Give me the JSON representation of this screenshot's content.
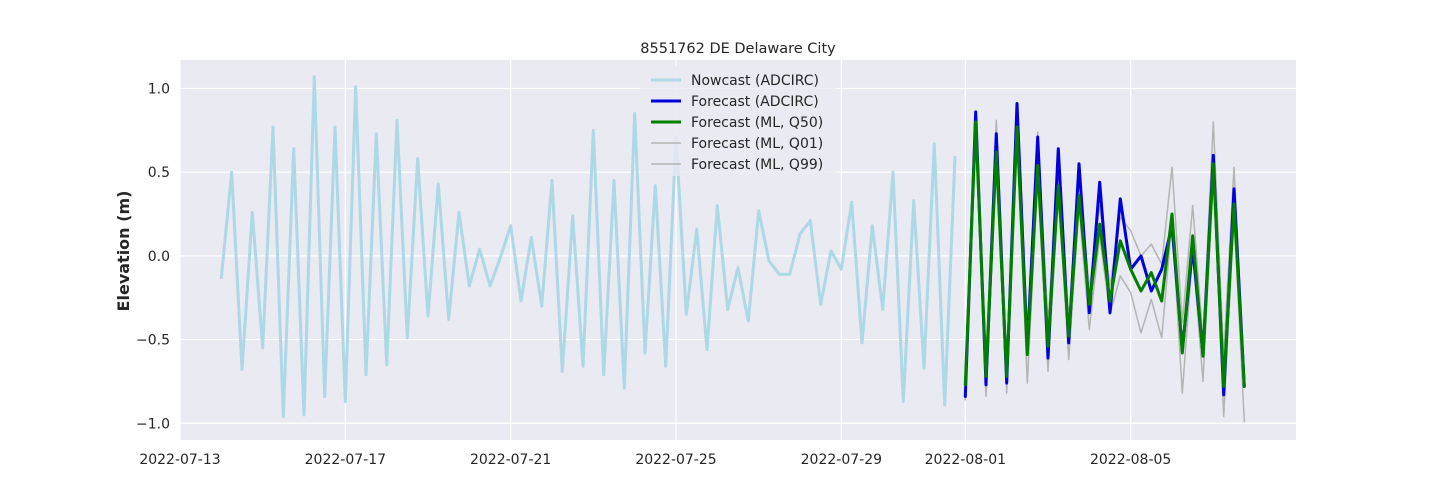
{
  "chart_data": {
    "type": "line",
    "title": "8551762 DE Delaware City",
    "xlabel": "",
    "ylabel": "Elevation (m)",
    "xlim": [
      "2022-07-13T00:00",
      "2022-08-09T00:00"
    ],
    "ylim": [
      -1.1,
      1.17
    ],
    "x_ticks": [
      "2022-07-13",
      "2022-07-17",
      "2022-07-21",
      "2022-07-25",
      "2022-07-29",
      "2022-08-01",
      "2022-08-05"
    ],
    "y_ticks": [
      1.0,
      0.5,
      0.0,
      -0.5,
      -1.0
    ],
    "y_tick_labels": [
      "1.0",
      "0.5",
      "0.0",
      "−0.5",
      "−1.0"
    ],
    "grid": true,
    "legend_position": "top-center",
    "series": [
      {
        "name": "Nowcast (ADCIRC)",
        "color": "#add8e6",
        "width": 3,
        "x_start": "2022-07-14T00:00",
        "step_hours": 6,
        "values": [
          -0.13,
          0.5,
          -0.68,
          0.26,
          -0.55,
          0.77,
          -0.96,
          0.64,
          -0.95,
          1.07,
          -0.84,
          0.77,
          -0.87,
          1.01,
          -0.71,
          0.73,
          -0.65,
          0.81,
          -0.49,
          0.58,
          -0.36,
          0.43,
          -0.38,
          0.26,
          -0.18,
          0.04,
          -0.18,
          -0.01,
          0.18,
          -0.27,
          0.11,
          -0.3,
          0.45,
          -0.69,
          0.24,
          -0.66,
          0.75,
          -0.71,
          0.45,
          -0.79,
          0.85,
          -0.58,
          0.42,
          -0.66,
          0.71,
          -0.35,
          0.16,
          -0.56,
          0.3,
          -0.32,
          -0.07,
          -0.39,
          0.27,
          -0.03,
          -0.11,
          -0.11,
          0.13,
          0.21,
          -0.29,
          0.03,
          -0.08,
          0.32,
          -0.52,
          0.18,
          -0.32,
          0.5,
          -0.87,
          0.33,
          -0.67,
          0.67,
          -0.89,
          0.59
        ]
      },
      {
        "name": "Forecast (ADCIRC)",
        "color": "#0000dd",
        "width": 3,
        "x_start": "2022-08-01T00:00",
        "step_hours": 6,
        "values": [
          -0.84,
          0.86,
          -0.77,
          0.73,
          -0.76,
          0.91,
          -0.56,
          0.71,
          -0.61,
          0.64,
          -0.52,
          0.55,
          -0.34,
          0.44,
          -0.34,
          0.34,
          -0.08,
          0.0,
          -0.21,
          -0.08,
          0.18,
          -0.56,
          0.05,
          -0.59,
          0.6,
          -0.83,
          0.4,
          -0.78
        ]
      },
      {
        "name": "Forecast (ML, Q50)",
        "color": "#008000",
        "width": 3,
        "x_start": "2022-08-01T00:00",
        "step_hours": 6,
        "values": [
          -0.77,
          0.8,
          -0.72,
          0.62,
          -0.72,
          0.77,
          -0.59,
          0.54,
          -0.54,
          0.42,
          -0.48,
          0.36,
          -0.29,
          0.19,
          -0.27,
          0.09,
          -0.08,
          -0.21,
          -0.1,
          -0.27,
          0.25,
          -0.58,
          0.12,
          -0.6,
          0.55,
          -0.78,
          0.31,
          -0.78
        ]
      },
      {
        "name": "Forecast (ML, Q01)",
        "color": "#b4b4b4",
        "width": 1.5,
        "x_start": "2022-08-01T00:00",
        "step_hours": 6,
        "values": [
          -0.86,
          0.78,
          -0.84,
          0.57,
          -0.82,
          0.73,
          -0.76,
          0.46,
          -0.69,
          0.39,
          -0.62,
          0.3,
          -0.44,
          0.12,
          -0.35,
          -0.12,
          -0.22,
          -0.46,
          -0.26,
          -0.49,
          0.21,
          -0.82,
          0.03,
          -0.75,
          0.49,
          -0.96,
          0.25,
          -0.99
        ]
      },
      {
        "name": "Forecast (ML, Q99)",
        "color": "#b4b4b4",
        "width": 1.5,
        "x_start": "2022-08-01T00:00",
        "step_hours": 6,
        "values": [
          -0.69,
          0.84,
          -0.6,
          0.81,
          -0.61,
          0.81,
          -0.45,
          0.74,
          -0.4,
          0.5,
          -0.38,
          0.47,
          -0.2,
          0.3,
          -0.18,
          0.23,
          0.15,
          0.0,
          0.07,
          -0.05,
          0.53,
          -0.4,
          0.3,
          -0.5,
          0.8,
          -0.6,
          0.53,
          -0.7
        ]
      }
    ]
  }
}
